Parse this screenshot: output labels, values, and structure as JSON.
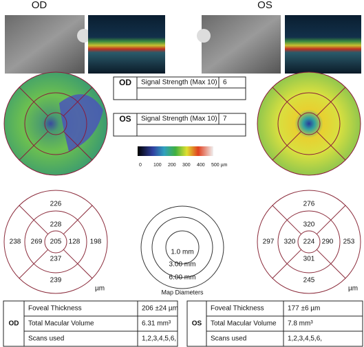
{
  "header": {
    "od": "OD",
    "os": "OS"
  },
  "signal": [
    {
      "eye": "OD",
      "label": "Signal Strength (Max 10)",
      "value": 6
    },
    {
      "eye": "OS",
      "label": "Signal Strength (Max 10)",
      "value": 7
    }
  ],
  "color_scale": {
    "ticks": [
      "0",
      "100",
      "200",
      "300",
      "400",
      "500 µm"
    ]
  },
  "od_grid": {
    "superior_outer": 226,
    "superior_inner": 228,
    "temporal_outer": 238,
    "temporal_inner": 269,
    "center": 205,
    "nasal_inner": 128,
    "nasal_outer": 198,
    "inferior_inner": 237,
    "inferior_outer": 239,
    "unit": "µm"
  },
  "os_grid": {
    "superior_outer": 276,
    "superior_inner": 320,
    "temporal_outer": 297,
    "temporal_inner": 320,
    "center": 224,
    "nasal_inner": 290,
    "nasal_outer": 253,
    "inferior_inner": 301,
    "inferior_outer": 245,
    "unit": "µm"
  },
  "map_diameters": {
    "title": "Map Diameters",
    "rings": [
      "1.0 mm",
      "3.00 mm",
      "6.00 mm"
    ]
  },
  "summary": [
    {
      "eye": "OD",
      "rows": [
        [
          "Foveal Thickness",
          "206 ±24 µm"
        ],
        [
          "Total Macular Volume",
          "6.31 mm³"
        ],
        [
          "Scans used",
          "1,2,3,4,5,6,"
        ]
      ]
    },
    {
      "eye": "OS",
      "rows": [
        [
          "Foveal Thickness",
          "177 ±6 µm"
        ],
        [
          "Total Macular Volume",
          "7.8 mm³"
        ],
        [
          "Scans used",
          "1,2,3,4,5,6,"
        ]
      ]
    }
  ]
}
